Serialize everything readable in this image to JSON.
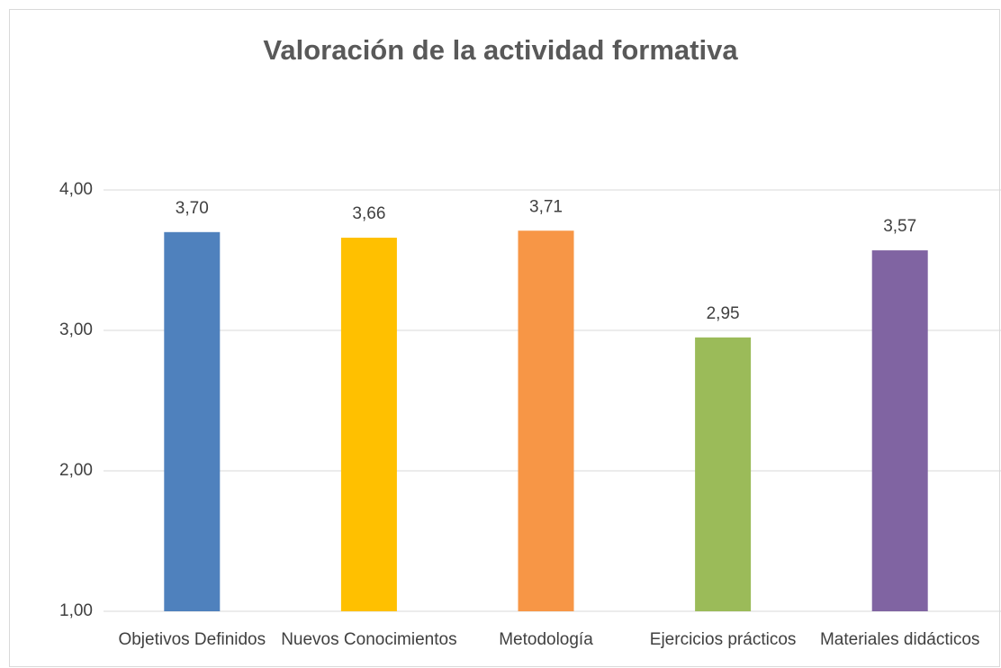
{
  "chart_data": {
    "type": "bar",
    "title": "Valoración de la actividad formativa",
    "categories": [
      "Objetivos Definidos",
      "Nuevos Conocimientos",
      "Metodología",
      "Ejercicios prácticos",
      "Materiales didácticos"
    ],
    "values": [
      3.7,
      3.66,
      3.71,
      2.95,
      3.57
    ],
    "value_labels": [
      "3,70",
      "3,66",
      "3,71",
      "2,95",
      "3,57"
    ],
    "colors": [
      "#4f81bd",
      "#ffc000",
      "#f79646",
      "#9bbb59",
      "#8064a2"
    ],
    "ylim": [
      1,
      4
    ],
    "yticks": [
      {
        "value": 1,
        "label": "1,00"
      },
      {
        "value": 2,
        "label": "2,00"
      },
      {
        "value": 3,
        "label": "3,00"
      },
      {
        "value": 4,
        "label": "4,00"
      }
    ],
    "grid": true
  }
}
